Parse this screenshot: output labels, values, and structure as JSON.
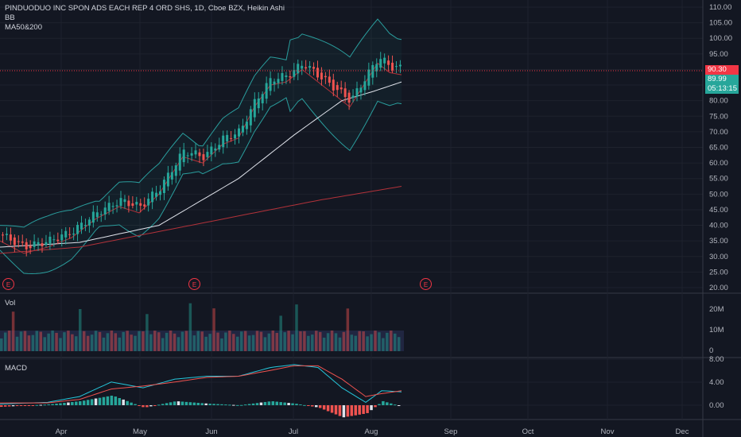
{
  "header": {
    "symbol_line": "PINDUODUO INC SPON ADS EACH REP 4 ORD SHS, 1D, Cboe BZX, Heikin Ashi",
    "indicator_bb": "BB",
    "indicator_ma": "MA50&200"
  },
  "price_axis": {
    "ticks": [
      "110.00",
      "105.00",
      "100.00",
      "95.00",
      "90.00",
      "85.00",
      "80.00",
      "75.00",
      "70.00",
      "65.00",
      "60.00",
      "55.00",
      "50.00",
      "45.00",
      "40.00",
      "35.00",
      "30.00",
      "25.00",
      "20.00"
    ],
    "last_price": "90.30",
    "ma_value": "89.99",
    "countdown": "05:13:15"
  },
  "volume_pane": {
    "label": "Vol",
    "ticks": [
      "20M",
      "10M",
      "0"
    ]
  },
  "macd_pane": {
    "label": "MACD",
    "ticks": [
      "8.00",
      "4.00",
      "0.00"
    ]
  },
  "time_axis": {
    "labels": [
      "Apr",
      "May",
      "Jun",
      "Jul",
      "Aug",
      "Sep",
      "Oct",
      "Nov",
      "Dec"
    ]
  },
  "earnings": {
    "marker": "E"
  },
  "colors": {
    "background": "#131722",
    "up": "#26a69a",
    "down": "#ef5350",
    "ma50": "#e0e3eb",
    "ma200": "#b2323a",
    "bb": "#2a9d9d",
    "macd_line": "#26c6da",
    "signal_line": "#ef5350",
    "grid": "#1e222d"
  },
  "chart_data": {
    "type": "candlestick",
    "series": [
      {
        "name": "Heikin Ashi",
        "close_points": [
          [
            0,
            37
          ],
          [
            30,
            33
          ],
          [
            60,
            35
          ],
          [
            90,
            38
          ],
          [
            120,
            44
          ],
          [
            150,
            48
          ],
          [
            175,
            46
          ],
          [
            200,
            52
          ],
          [
            230,
            64
          ],
          [
            255,
            62
          ],
          [
            280,
            68
          ],
          [
            300,
            70
          ],
          [
            320,
            80
          ],
          [
            340,
            87
          ],
          [
            360,
            88
          ],
          [
            380,
            92
          ],
          [
            400,
            88
          ],
          [
            420,
            84
          ],
          [
            440,
            80
          ],
          [
            460,
            88
          ],
          [
            475,
            94
          ],
          [
            490,
            91
          ],
          [
            505,
            90.3
          ]
        ]
      },
      {
        "name": "MA50",
        "points": [
          [
            0,
            33
          ],
          [
            100,
            34.5
          ],
          [
            200,
            40
          ],
          [
            300,
            55
          ],
          [
            370,
            69
          ],
          [
            430,
            80
          ],
          [
            470,
            83
          ],
          [
            505,
            86
          ]
        ]
      },
      {
        "name": "MA200",
        "points": [
          [
            0,
            31
          ],
          [
            100,
            33
          ],
          [
            200,
            38
          ],
          [
            300,
            43
          ],
          [
            400,
            48
          ],
          [
            505,
            52.5
          ]
        ]
      }
    ],
    "volume_max": 20000000,
    "macd_range": [
      -2,
      8
    ]
  }
}
